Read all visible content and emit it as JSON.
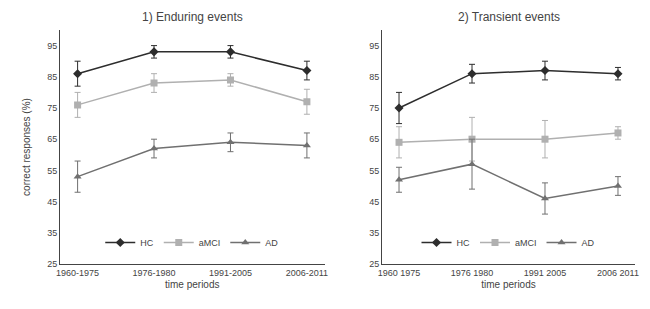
{
  "chart_data": [
    {
      "type": "line",
      "title": "1) Enduring events",
      "xlabel": "time periods",
      "ylabel": "correct responses (%)",
      "categories": [
        "1960-1975",
        "1976-1980",
        "1991-2005",
        "2006-2011"
      ],
      "series": [
        {
          "name": "HC",
          "color": "#2d2d2d",
          "marker": "diamond",
          "values": [
            86,
            93,
            93,
            87
          ],
          "errors": [
            4,
            2,
            2,
            3
          ]
        },
        {
          "name": "aMCI",
          "color": "#b0b0b0",
          "marker": "square",
          "values": [
            76,
            83,
            84,
            77
          ],
          "errors": [
            4,
            3,
            2,
            4
          ]
        },
        {
          "name": "AD",
          "color": "#707070",
          "marker": "triangle-up",
          "values": [
            53,
            62,
            64,
            63
          ],
          "errors": [
            5,
            3,
            3,
            4
          ]
        }
      ],
      "ylim": [
        25,
        100
      ],
      "yticks": [
        25,
        35,
        45,
        55,
        65,
        75,
        85,
        95
      ],
      "grid": false,
      "legend": "lower center"
    },
    {
      "type": "line",
      "title": "2) Transient events",
      "xlabel": "time periods",
      "categories": [
        "1960 1975",
        "1976 1980",
        "1991 2005",
        "2006 2011"
      ],
      "series": [
        {
          "name": "HC",
          "color": "#2d2d2d",
          "marker": "diamond",
          "values": [
            75,
            86,
            87,
            86
          ],
          "errors": [
            5,
            3,
            3,
            2
          ]
        },
        {
          "name": "aMCI",
          "color": "#b0b0b0",
          "marker": "square",
          "values": [
            64,
            65,
            65,
            67
          ],
          "errors": [
            5,
            7,
            6,
            2
          ]
        },
        {
          "name": "AD",
          "color": "#707070",
          "marker": "triangle-up",
          "values": [
            52,
            57,
            46,
            50
          ],
          "errors": [
            4,
            8,
            5,
            3
          ]
        }
      ],
      "ylim": [
        25,
        100
      ],
      "yticks": [
        25,
        35,
        45,
        55,
        65,
        75,
        85,
        95
      ],
      "grid": false,
      "legend": "lower center"
    }
  ]
}
